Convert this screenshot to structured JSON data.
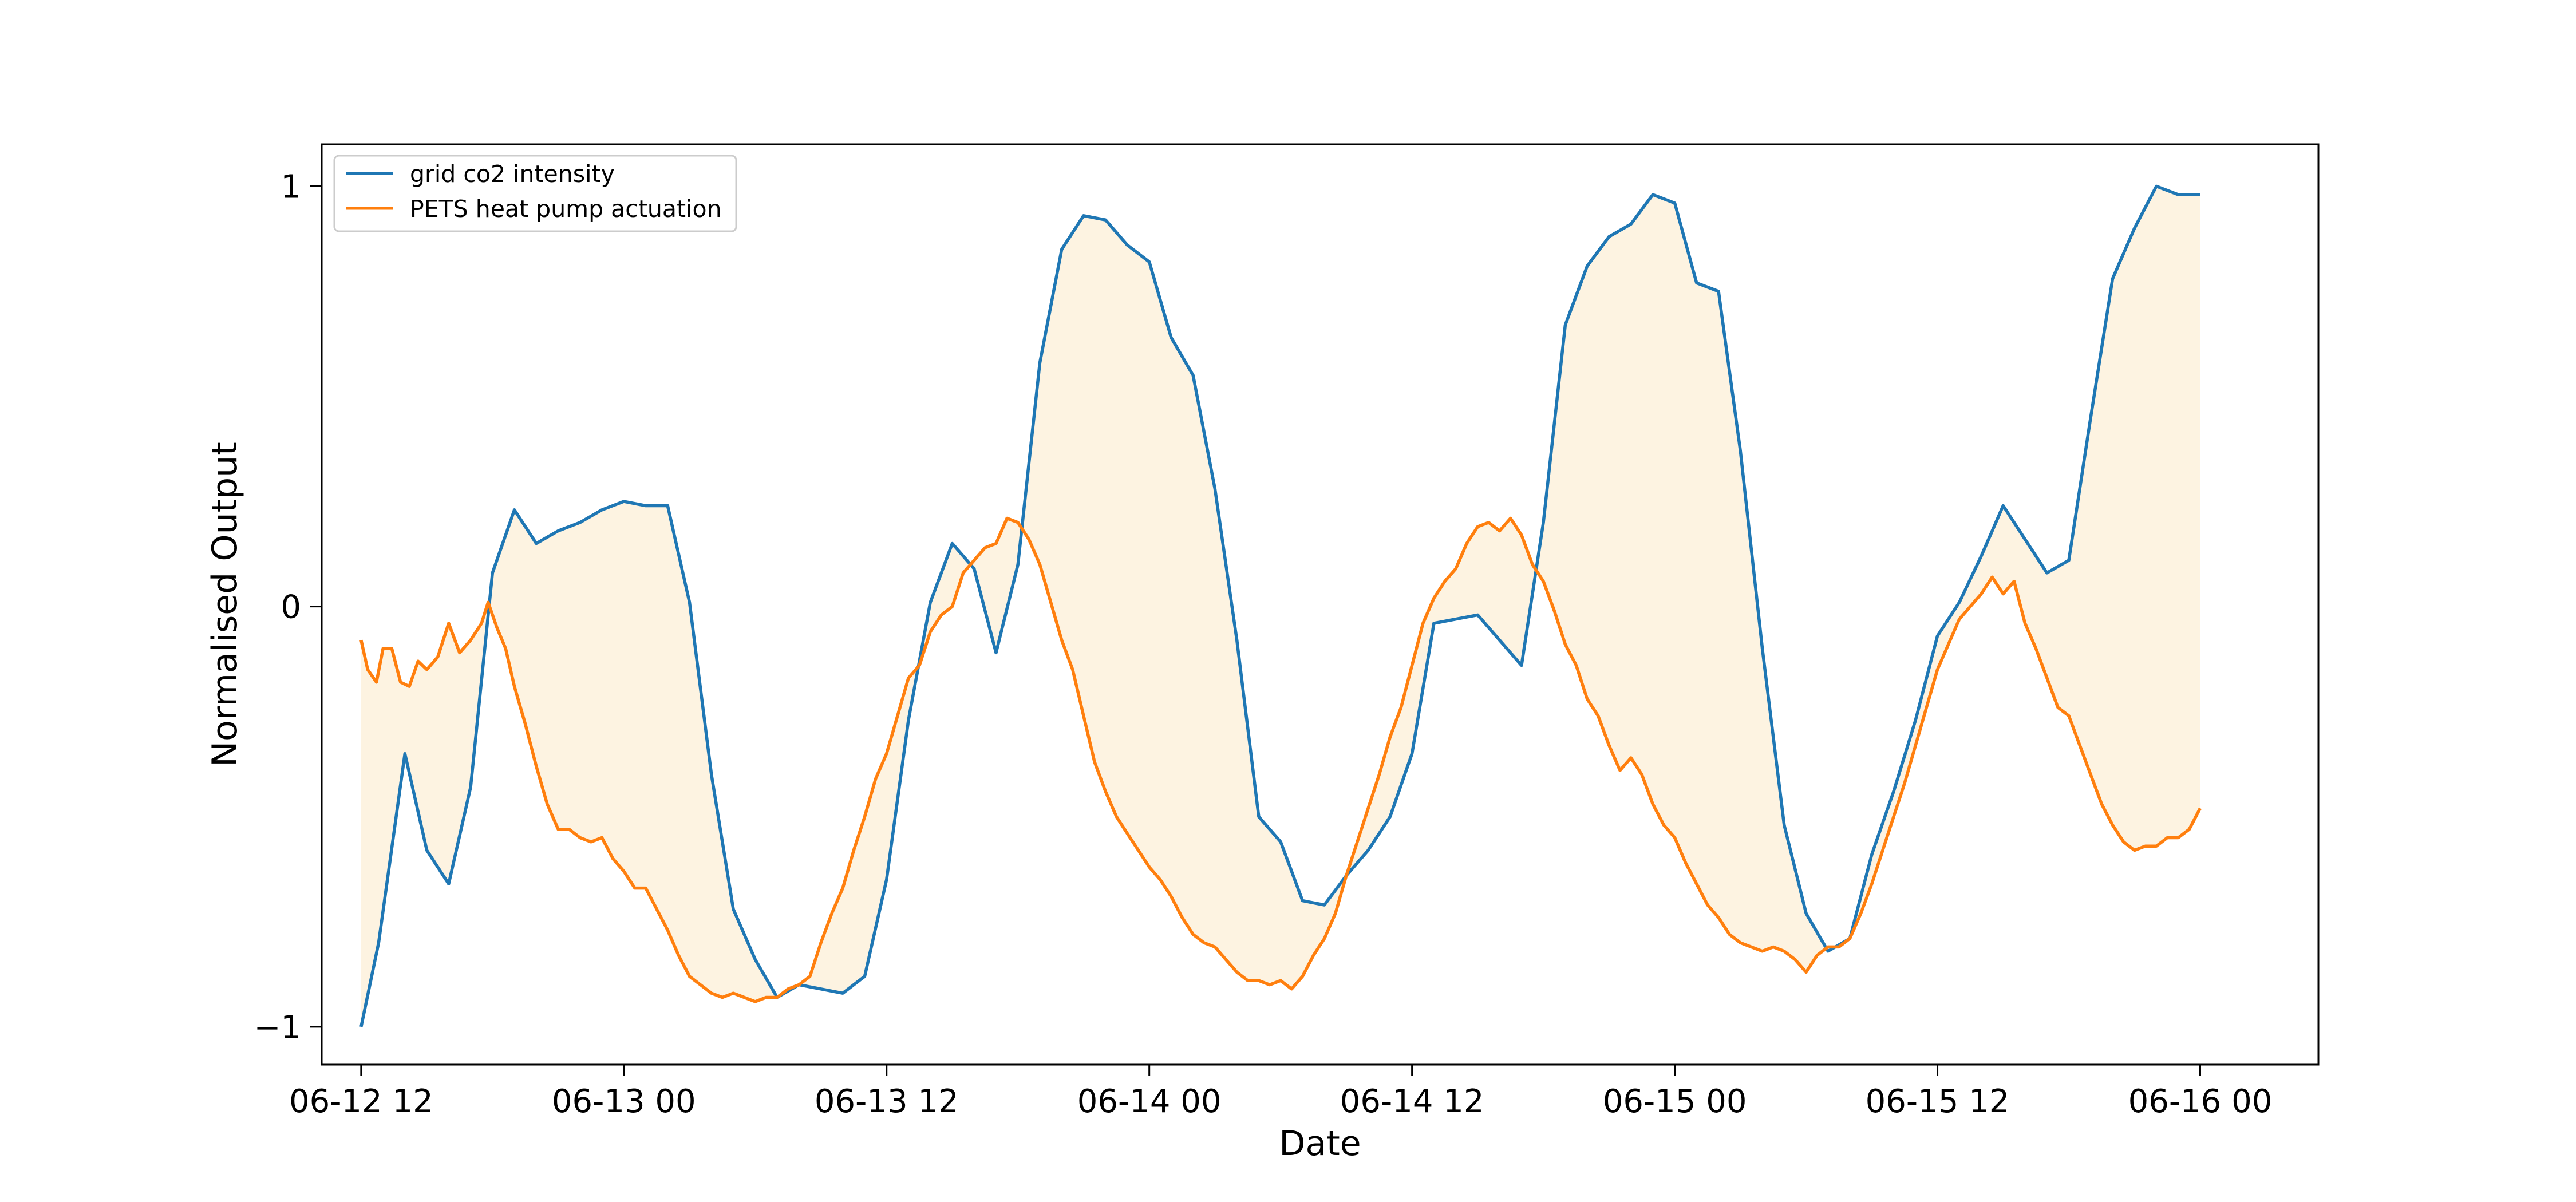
{
  "chart_data": {
    "type": "line",
    "title": "",
    "xlabel": "Date",
    "ylabel": "Normalised Output",
    "x_unit": "hours",
    "xlim": [
      "06-12 10.2",
      "06-16 01.4"
    ],
    "ylim": [
      -1.09,
      1.1
    ],
    "x_ticks": [
      {
        "value": 12,
        "label": "06-12 12"
      },
      {
        "value": 24,
        "label": "06-13 00"
      },
      {
        "value": 36,
        "label": "06-13 12"
      },
      {
        "value": 48,
        "label": "06-14 00"
      },
      {
        "value": 60,
        "label": "06-14 12"
      },
      {
        "value": 72,
        "label": "06-15 00"
      },
      {
        "value": 84,
        "label": "06-15 12"
      },
      {
        "value": 96,
        "label": "06-16 00"
      }
    ],
    "y_ticks": [
      {
        "value": -1,
        "label": "−1"
      },
      {
        "value": 0,
        "label": "0"
      },
      {
        "value": 1,
        "label": "1"
      }
    ],
    "grid": false,
    "legend": "top-left",
    "fill_between": {
      "color": "#fdf3e1"
    },
    "series": [
      {
        "name": "grid co2 intensity",
        "color": "#1f77b4",
        "points": [
          [
            12.0,
            -1.0
          ],
          [
            12.8,
            -0.8
          ],
          [
            14.0,
            -0.35
          ],
          [
            15.0,
            -0.58
          ],
          [
            16.0,
            -0.66
          ],
          [
            17.0,
            -0.43
          ],
          [
            18.0,
            0.08
          ],
          [
            19.0,
            0.23
          ],
          [
            20.0,
            0.15
          ],
          [
            21.0,
            0.18
          ],
          [
            22.0,
            0.2
          ],
          [
            23.0,
            0.23
          ],
          [
            24.0,
            0.25
          ],
          [
            25.0,
            0.24
          ],
          [
            26.0,
            0.24
          ],
          [
            27.0,
            0.01
          ],
          [
            28.0,
            -0.4
          ],
          [
            29.0,
            -0.72
          ],
          [
            30.0,
            -0.84
          ],
          [
            31.0,
            -0.93
          ],
          [
            32.0,
            -0.9
          ],
          [
            33.0,
            -0.91
          ],
          [
            34.0,
            -0.92
          ],
          [
            35.0,
            -0.88
          ],
          [
            36.0,
            -0.65
          ],
          [
            37.0,
            -0.27
          ],
          [
            38.0,
            0.01
          ],
          [
            39.0,
            0.15
          ],
          [
            40.0,
            0.09
          ],
          [
            41.0,
            -0.11
          ],
          [
            42.0,
            0.1
          ],
          [
            43.0,
            0.58
          ],
          [
            44.0,
            0.85
          ],
          [
            45.0,
            0.93
          ],
          [
            46.0,
            0.92
          ],
          [
            47.0,
            0.86
          ],
          [
            48.0,
            0.82
          ],
          [
            49.0,
            0.64
          ],
          [
            50.0,
            0.55
          ],
          [
            51.0,
            0.28
          ],
          [
            52.0,
            -0.08
          ],
          [
            53.0,
            -0.5
          ],
          [
            54.0,
            -0.56
          ],
          [
            55.0,
            -0.7
          ],
          [
            56.0,
            -0.71
          ],
          [
            57.0,
            -0.64
          ],
          [
            58.0,
            -0.58
          ],
          [
            59.0,
            -0.5
          ],
          [
            60.0,
            -0.35
          ],
          [
            61.0,
            -0.04
          ],
          [
            62.0,
            -0.03
          ],
          [
            63.0,
            -0.02
          ],
          [
            64.0,
            -0.08
          ],
          [
            65.0,
            -0.14
          ],
          [
            66.0,
            0.2
          ],
          [
            67.0,
            0.67
          ],
          [
            68.0,
            0.81
          ],
          [
            69.0,
            0.88
          ],
          [
            70.0,
            0.91
          ],
          [
            71.0,
            0.98
          ],
          [
            72.0,
            0.96
          ],
          [
            73.0,
            0.77
          ],
          [
            74.0,
            0.75
          ],
          [
            75.0,
            0.37
          ],
          [
            76.0,
            -0.1
          ],
          [
            77.0,
            -0.52
          ],
          [
            78.0,
            -0.73
          ],
          [
            79.0,
            -0.82
          ],
          [
            80.0,
            -0.79
          ],
          [
            81.0,
            -0.59
          ],
          [
            82.0,
            -0.44
          ],
          [
            83.0,
            -0.27
          ],
          [
            84.0,
            -0.07
          ],
          [
            85.0,
            0.01
          ],
          [
            86.0,
            0.12
          ],
          [
            87.0,
            0.24
          ],
          [
            88.0,
            0.16
          ],
          [
            89.0,
            0.08
          ],
          [
            90.0,
            0.11
          ],
          [
            91.0,
            0.45
          ],
          [
            92.0,
            0.78
          ],
          [
            93.0,
            0.9
          ],
          [
            94.0,
            1.0
          ],
          [
            95.0,
            0.98
          ],
          [
            96.0,
            0.98
          ]
        ]
      },
      {
        "name": "PETS heat pump actuation",
        "color": "#ff7f0e",
        "points": [
          [
            12.0,
            -0.08
          ],
          [
            12.3,
            -0.15
          ],
          [
            12.7,
            -0.18
          ],
          [
            13.0,
            -0.1
          ],
          [
            13.4,
            -0.1
          ],
          [
            13.8,
            -0.18
          ],
          [
            14.2,
            -0.19
          ],
          [
            14.6,
            -0.13
          ],
          [
            15.0,
            -0.15
          ],
          [
            15.5,
            -0.12
          ],
          [
            16.0,
            -0.04
          ],
          [
            16.5,
            -0.11
          ],
          [
            17.0,
            -0.08
          ],
          [
            17.5,
            -0.04
          ],
          [
            17.8,
            0.01
          ],
          [
            18.2,
            -0.05
          ],
          [
            18.6,
            -0.1
          ],
          [
            19.0,
            -0.19
          ],
          [
            19.5,
            -0.28
          ],
          [
            20.0,
            -0.38
          ],
          [
            20.5,
            -0.47
          ],
          [
            21.0,
            -0.53
          ],
          [
            21.5,
            -0.53
          ],
          [
            22.0,
            -0.55
          ],
          [
            22.5,
            -0.56
          ],
          [
            23.0,
            -0.55
          ],
          [
            23.5,
            -0.6
          ],
          [
            24.0,
            -0.63
          ],
          [
            24.5,
            -0.67
          ],
          [
            25.0,
            -0.67
          ],
          [
            25.5,
            -0.72
          ],
          [
            26.0,
            -0.77
          ],
          [
            26.5,
            -0.83
          ],
          [
            27.0,
            -0.88
          ],
          [
            27.5,
            -0.9
          ],
          [
            28.0,
            -0.92
          ],
          [
            28.5,
            -0.93
          ],
          [
            29.0,
            -0.92
          ],
          [
            29.5,
            -0.93
          ],
          [
            30.0,
            -0.94
          ],
          [
            30.5,
            -0.93
          ],
          [
            31.0,
            -0.93
          ],
          [
            31.5,
            -0.91
          ],
          [
            32.0,
            -0.9
          ],
          [
            32.5,
            -0.88
          ],
          [
            33.0,
            -0.8
          ],
          [
            33.5,
            -0.73
          ],
          [
            34.0,
            -0.67
          ],
          [
            34.5,
            -0.58
          ],
          [
            35.0,
            -0.5
          ],
          [
            35.5,
            -0.41
          ],
          [
            36.0,
            -0.35
          ],
          [
            36.5,
            -0.26
          ],
          [
            37.0,
            -0.17
          ],
          [
            37.5,
            -0.14
          ],
          [
            38.0,
            -0.06
          ],
          [
            38.5,
            -0.02
          ],
          [
            39.0,
            0.0
          ],
          [
            39.5,
            0.08
          ],
          [
            40.0,
            0.11
          ],
          [
            40.5,
            0.14
          ],
          [
            41.0,
            0.15
          ],
          [
            41.5,
            0.21
          ],
          [
            42.0,
            0.2
          ],
          [
            42.5,
            0.16
          ],
          [
            43.0,
            0.1
          ],
          [
            43.5,
            0.01
          ],
          [
            44.0,
            -0.08
          ],
          [
            44.5,
            -0.15
          ],
          [
            45.0,
            -0.26
          ],
          [
            45.5,
            -0.37
          ],
          [
            46.0,
            -0.44
          ],
          [
            46.5,
            -0.5
          ],
          [
            47.0,
            -0.54
          ],
          [
            47.5,
            -0.58
          ],
          [
            48.0,
            -0.62
          ],
          [
            48.5,
            -0.65
          ],
          [
            49.0,
            -0.69
          ],
          [
            49.5,
            -0.74
          ],
          [
            50.0,
            -0.78
          ],
          [
            50.5,
            -0.8
          ],
          [
            51.0,
            -0.81
          ],
          [
            51.5,
            -0.84
          ],
          [
            52.0,
            -0.87
          ],
          [
            52.5,
            -0.89
          ],
          [
            53.0,
            -0.89
          ],
          [
            53.5,
            -0.9
          ],
          [
            54.0,
            -0.89
          ],
          [
            54.5,
            -0.91
          ],
          [
            55.0,
            -0.88
          ],
          [
            55.5,
            -0.83
          ],
          [
            56.0,
            -0.79
          ],
          [
            56.5,
            -0.73
          ],
          [
            57.0,
            -0.64
          ],
          [
            57.5,
            -0.56
          ],
          [
            58.0,
            -0.48
          ],
          [
            58.5,
            -0.4
          ],
          [
            59.0,
            -0.31
          ],
          [
            59.5,
            -0.24
          ],
          [
            60.0,
            -0.14
          ],
          [
            60.5,
            -0.04
          ],
          [
            61.0,
            0.02
          ],
          [
            61.5,
            0.06
          ],
          [
            62.0,
            0.09
          ],
          [
            62.5,
            0.15
          ],
          [
            63.0,
            0.19
          ],
          [
            63.5,
            0.2
          ],
          [
            64.0,
            0.18
          ],
          [
            64.5,
            0.21
          ],
          [
            65.0,
            0.17
          ],
          [
            65.5,
            0.1
          ],
          [
            66.0,
            0.06
          ],
          [
            66.5,
            -0.01
          ],
          [
            67.0,
            -0.09
          ],
          [
            67.5,
            -0.14
          ],
          [
            68.0,
            -0.22
          ],
          [
            68.5,
            -0.26
          ],
          [
            69.0,
            -0.33
          ],
          [
            69.5,
            -0.39
          ],
          [
            70.0,
            -0.36
          ],
          [
            70.5,
            -0.4
          ],
          [
            71.0,
            -0.47
          ],
          [
            71.5,
            -0.52
          ],
          [
            72.0,
            -0.55
          ],
          [
            72.5,
            -0.61
          ],
          [
            73.0,
            -0.66
          ],
          [
            73.5,
            -0.71
          ],
          [
            74.0,
            -0.74
          ],
          [
            74.5,
            -0.78
          ],
          [
            75.0,
            -0.8
          ],
          [
            75.5,
            -0.81
          ],
          [
            76.0,
            -0.82
          ],
          [
            76.5,
            -0.81
          ],
          [
            77.0,
            -0.82
          ],
          [
            77.5,
            -0.84
          ],
          [
            78.0,
            -0.87
          ],
          [
            78.5,
            -0.83
          ],
          [
            79.0,
            -0.81
          ],
          [
            79.5,
            -0.81
          ],
          [
            80.0,
            -0.79
          ],
          [
            80.5,
            -0.73
          ],
          [
            81.0,
            -0.66
          ],
          [
            81.5,
            -0.58
          ],
          [
            82.0,
            -0.5
          ],
          [
            82.5,
            -0.42
          ],
          [
            83.0,
            -0.33
          ],
          [
            83.5,
            -0.24
          ],
          [
            84.0,
            -0.15
          ],
          [
            84.5,
            -0.09
          ],
          [
            85.0,
            -0.03
          ],
          [
            85.5,
            0.0
          ],
          [
            86.0,
            0.03
          ],
          [
            86.5,
            0.07
          ],
          [
            87.0,
            0.03
          ],
          [
            87.5,
            0.06
          ],
          [
            88.0,
            -0.04
          ],
          [
            88.5,
            -0.1
          ],
          [
            89.0,
            -0.17
          ],
          [
            89.5,
            -0.24
          ],
          [
            90.0,
            -0.26
          ],
          [
            90.5,
            -0.33
          ],
          [
            91.0,
            -0.4
          ],
          [
            91.5,
            -0.47
          ],
          [
            92.0,
            -0.52
          ],
          [
            92.5,
            -0.56
          ],
          [
            93.0,
            -0.58
          ],
          [
            93.5,
            -0.57
          ],
          [
            94.0,
            -0.57
          ],
          [
            94.5,
            -0.55
          ],
          [
            95.0,
            -0.55
          ],
          [
            95.5,
            -0.53
          ],
          [
            96.0,
            -0.48
          ]
        ]
      }
    ]
  }
}
